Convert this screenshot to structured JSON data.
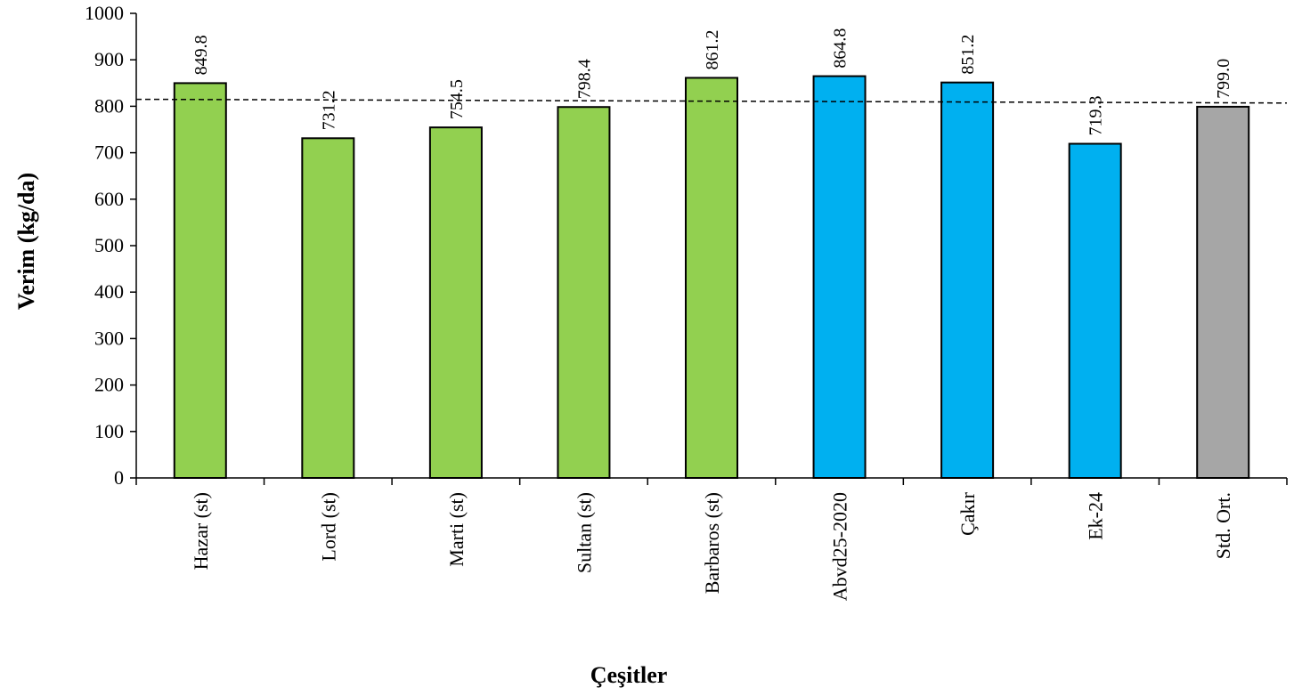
{
  "chart_data": {
    "type": "bar",
    "title": "",
    "xlabel": "Çeşitler",
    "ylabel": "Verim (kg/da)",
    "ylim": [
      0,
      1000
    ],
    "yticks": [
      0,
      100,
      200,
      300,
      400,
      500,
      600,
      700,
      800,
      900,
      1000
    ],
    "ytick_labels": [
      "0",
      "100",
      "200",
      "300",
      "400",
      "500",
      "600",
      "700",
      "800",
      "900",
      "1000"
    ],
    "categories": [
      "Hazar (st)",
      "Lord (st)",
      "Marti (st)",
      "Sultan (st)",
      "Barbaros (st)",
      "Abvd25-2020",
      "Çakır",
      "Ek-24",
      "Std. Ort."
    ],
    "values": [
      849.8,
      731.2,
      754.5,
      798.4,
      861.2,
      864.8,
      851.2,
      719.3,
      799.0
    ],
    "value_labels": [
      "849.8",
      "731.2",
      "754.5",
      "798.4",
      "861.2",
      "864.8",
      "851.2",
      "719.3",
      "799.0"
    ],
    "bar_colors": [
      "#92d050",
      "#92d050",
      "#92d050",
      "#92d050",
      "#92d050",
      "#00b0f0",
      "#00b0f0",
      "#00b0f0",
      "#a6a6a6"
    ],
    "reference_line": {
      "style": "dashed",
      "y_start": 815,
      "y_end": 807
    },
    "grid": false,
    "legend": "none"
  }
}
